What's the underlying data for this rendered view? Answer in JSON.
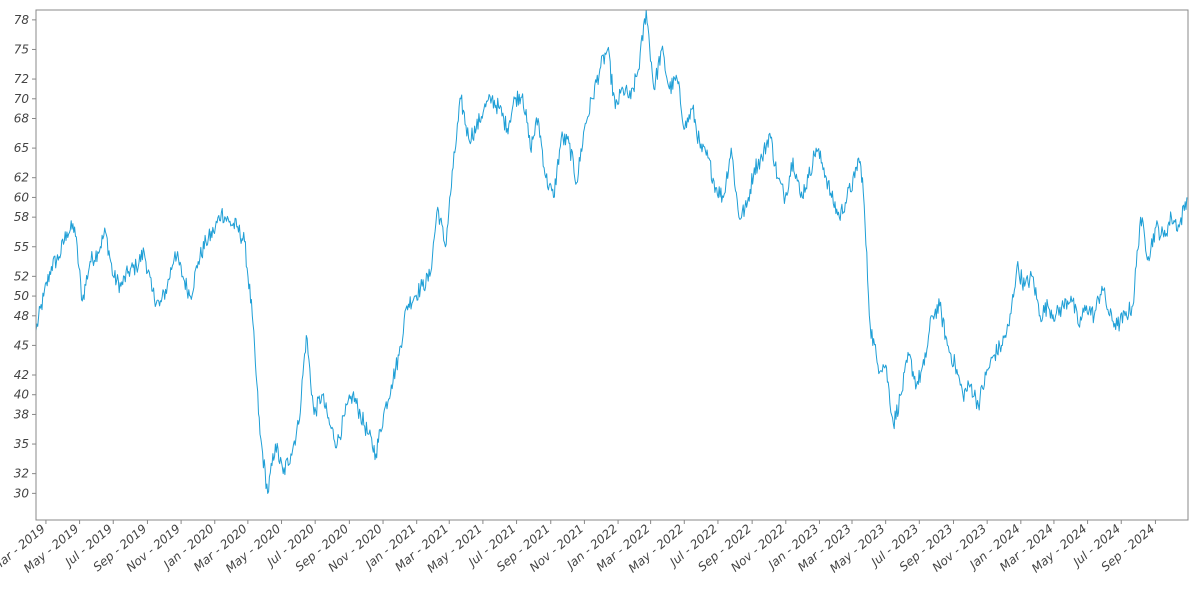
{
  "chart_data": {
    "type": "line",
    "title": "",
    "xlabel": "",
    "ylabel": "",
    "xlim": [
      "2019-02-11",
      "2024-10-30"
    ],
    "ylim": [
      27.3,
      79.0
    ],
    "y_ticks": [
      30,
      32,
      35,
      38,
      40,
      42,
      45,
      48,
      50,
      52,
      55,
      58,
      60,
      62,
      65,
      68,
      70,
      72,
      75,
      78
    ],
    "y_tick_labels": [
      "30",
      "32",
      "35",
      "38",
      "40",
      "42",
      "45",
      "48",
      "50",
      "52",
      "55",
      "58",
      "60",
      "62",
      "65",
      "68",
      "70",
      "72",
      "75",
      "78"
    ],
    "x_ticks": [
      "2019-03-01",
      "2019-05-01",
      "2019-07-01",
      "2019-09-01",
      "2019-11-01",
      "2020-01-01",
      "2020-03-01",
      "2020-05-01",
      "2020-07-01",
      "2020-09-01",
      "2020-11-01",
      "2021-01-01",
      "2021-03-01",
      "2021-05-01",
      "2021-07-01",
      "2021-09-01",
      "2021-11-01",
      "2022-01-01",
      "2022-03-01",
      "2022-05-01",
      "2022-07-01",
      "2022-09-01",
      "2022-11-01",
      "2023-01-01",
      "2023-03-01",
      "2023-05-01",
      "2023-07-01",
      "2023-09-01",
      "2023-11-01",
      "2024-01-01",
      "2024-03-01",
      "2024-05-01",
      "2024-07-01",
      "2024-09-01"
    ],
    "x_tick_labels": [
      "Mar - 2019",
      "May - 2019",
      "Jul - 2019",
      "Sep - 2019",
      "Nov - 2019",
      "Jan - 2020",
      "Mar - 2020",
      "May - 2020",
      "Jul - 2020",
      "Sep - 2020",
      "Nov - 2020",
      "Jan - 2021",
      "Mar - 2021",
      "May - 2021",
      "Jul - 2021",
      "Sep - 2021",
      "Nov - 2021",
      "Jan - 2022",
      "Mar - 2022",
      "May - 2022",
      "Jul - 2022",
      "Sep - 2022",
      "Nov - 2022",
      "Jan - 2023",
      "Mar - 2023",
      "May - 2023",
      "Jul - 2023",
      "Sep - 2023",
      "Nov - 2023",
      "Jan - 2024",
      "Mar - 2024",
      "May - 2024",
      "Jul - 2024",
      "Sep - 2024"
    ],
    "grid": false,
    "legend": "none",
    "line_color": "#1f9fd6",
    "series": [
      {
        "x": [
          "2019-02-11",
          "2019-02-25",
          "2019-03-11",
          "2019-03-25",
          "2019-04-08",
          "2019-04-22",
          "2019-05-06",
          "2019-05-20",
          "2019-06-03",
          "2019-06-17",
          "2019-07-01",
          "2019-07-15",
          "2019-07-29",
          "2019-08-12",
          "2019-08-26",
          "2019-09-09",
          "2019-09-23",
          "2019-10-07",
          "2019-10-21",
          "2019-11-04",
          "2019-11-18",
          "2019-12-02",
          "2019-12-16",
          "2019-12-30",
          "2020-01-13",
          "2020-01-27",
          "2020-02-10",
          "2020-02-24",
          "2020-03-09",
          "2020-03-16",
          "2020-03-23",
          "2020-04-06",
          "2020-04-20",
          "2020-05-04",
          "2020-05-18",
          "2020-06-01",
          "2020-06-15",
          "2020-06-29",
          "2020-07-13",
          "2020-07-27",
          "2020-08-10",
          "2020-08-24",
          "2020-09-07",
          "2020-09-21",
          "2020-10-05",
          "2020-10-19",
          "2020-11-02",
          "2020-11-16",
          "2020-11-30",
          "2020-12-14",
          "2020-12-28",
          "2021-01-11",
          "2021-01-25",
          "2021-02-08",
          "2021-02-22",
          "2021-03-08",
          "2021-03-22",
          "2021-04-05",
          "2021-04-19",
          "2021-05-03",
          "2021-05-17",
          "2021-05-31",
          "2021-06-14",
          "2021-06-28",
          "2021-07-12",
          "2021-07-26",
          "2021-08-09",
          "2021-08-23",
          "2021-09-06",
          "2021-09-20",
          "2021-10-04",
          "2021-10-18",
          "2021-11-01",
          "2021-11-15",
          "2021-11-29",
          "2021-12-13",
          "2021-12-27",
          "2022-01-10",
          "2022-01-24",
          "2022-02-07",
          "2022-02-21",
          "2022-03-07",
          "2022-03-21",
          "2022-04-04",
          "2022-04-18",
          "2022-05-02",
          "2022-05-16",
          "2022-05-30",
          "2022-06-13",
          "2022-06-27",
          "2022-07-11",
          "2022-07-25",
          "2022-08-08",
          "2022-08-22",
          "2022-09-05",
          "2022-09-19",
          "2022-10-03",
          "2022-10-17",
          "2022-10-31",
          "2022-11-14",
          "2022-11-28",
          "2022-12-12",
          "2022-12-26",
          "2023-01-09",
          "2023-01-23",
          "2023-02-06",
          "2023-02-20",
          "2023-03-06",
          "2023-03-13",
          "2023-03-20",
          "2023-04-03",
          "2023-04-17",
          "2023-05-01",
          "2023-05-15",
          "2023-05-29",
          "2023-06-12",
          "2023-06-26",
          "2023-07-10",
          "2023-07-24",
          "2023-08-07",
          "2023-08-21",
          "2023-09-04",
          "2023-09-18",
          "2023-10-02",
          "2023-10-16",
          "2023-10-30",
          "2023-11-13",
          "2023-11-27",
          "2023-12-11",
          "2023-12-25",
          "2024-01-08",
          "2024-01-22",
          "2024-02-05",
          "2024-02-19",
          "2024-03-04",
          "2024-03-18",
          "2024-04-01",
          "2024-04-15",
          "2024-04-29",
          "2024-05-13",
          "2024-05-27",
          "2024-06-10",
          "2024-06-24",
          "2024-07-08",
          "2024-07-22",
          "2024-08-05",
          "2024-08-19",
          "2024-09-02",
          "2024-09-16",
          "2024-09-30",
          "2024-10-14",
          "2024-10-28"
        ],
        "y": [
          46.5,
          50.0,
          53.0,
          54.0,
          56.5,
          57.0,
          49.5,
          53.5,
          54.5,
          56.5,
          52.0,
          51.0,
          52.5,
          53.0,
          54.5,
          50.5,
          49.0,
          51.0,
          54.5,
          52.0,
          50.0,
          53.5,
          55.5,
          56.5,
          58.5,
          57.5,
          57.0,
          55.5,
          48.0,
          42.0,
          36.0,
          30.0,
          35.0,
          32.0,
          34.0,
          37.0,
          46.0,
          38.0,
          40.0,
          37.0,
          35.0,
          38.0,
          40.0,
          38.0,
          36.0,
          34.0,
          38.0,
          41.0,
          44.0,
          49.0,
          50.0,
          51.0,
          52.0,
          59.0,
          55.0,
          63.0,
          70.0,
          66.0,
          67.0,
          69.0,
          70.0,
          69.0,
          67.0,
          70.0,
          70.5,
          65.0,
          68.0,
          62.0,
          60.0,
          66.0,
          65.5,
          61.5,
          67.0,
          70.0,
          73.0,
          75.0,
          69.0,
          71.0,
          70.0,
          73.0,
          79.0,
          71.0,
          75.0,
          71.0,
          72.0,
          67.0,
          69.0,
          65.0,
          64.0,
          61.0,
          60.0,
          65.0,
          58.0,
          59.0,
          63.0,
          64.0,
          66.5,
          62.0,
          60.0,
          64.0,
          60.0,
          62.0,
          65.0,
          63.0,
          60.0,
          58.0,
          60.0,
          62.0,
          64.0,
          62.0,
          47.0,
          43.0,
          43.0,
          37.0,
          40.0,
          44.0,
          41.0,
          43.0,
          48.0,
          49.0,
          45.0,
          43.0,
          40.0,
          41.0,
          39.0,
          42.0,
          44.0,
          45.0,
          47.0,
          53.0,
          51.0,
          52.0,
          48.0,
          49.0,
          48.0,
          49.0,
          50.0,
          47.0,
          49.0,
          48.0,
          51.0,
          48.0,
          47.0,
          48.0,
          49.0,
          58.0,
          54.0,
          57.0,
          56.0,
          58.0,
          57.0,
          60.0
        ]
      }
    ]
  }
}
